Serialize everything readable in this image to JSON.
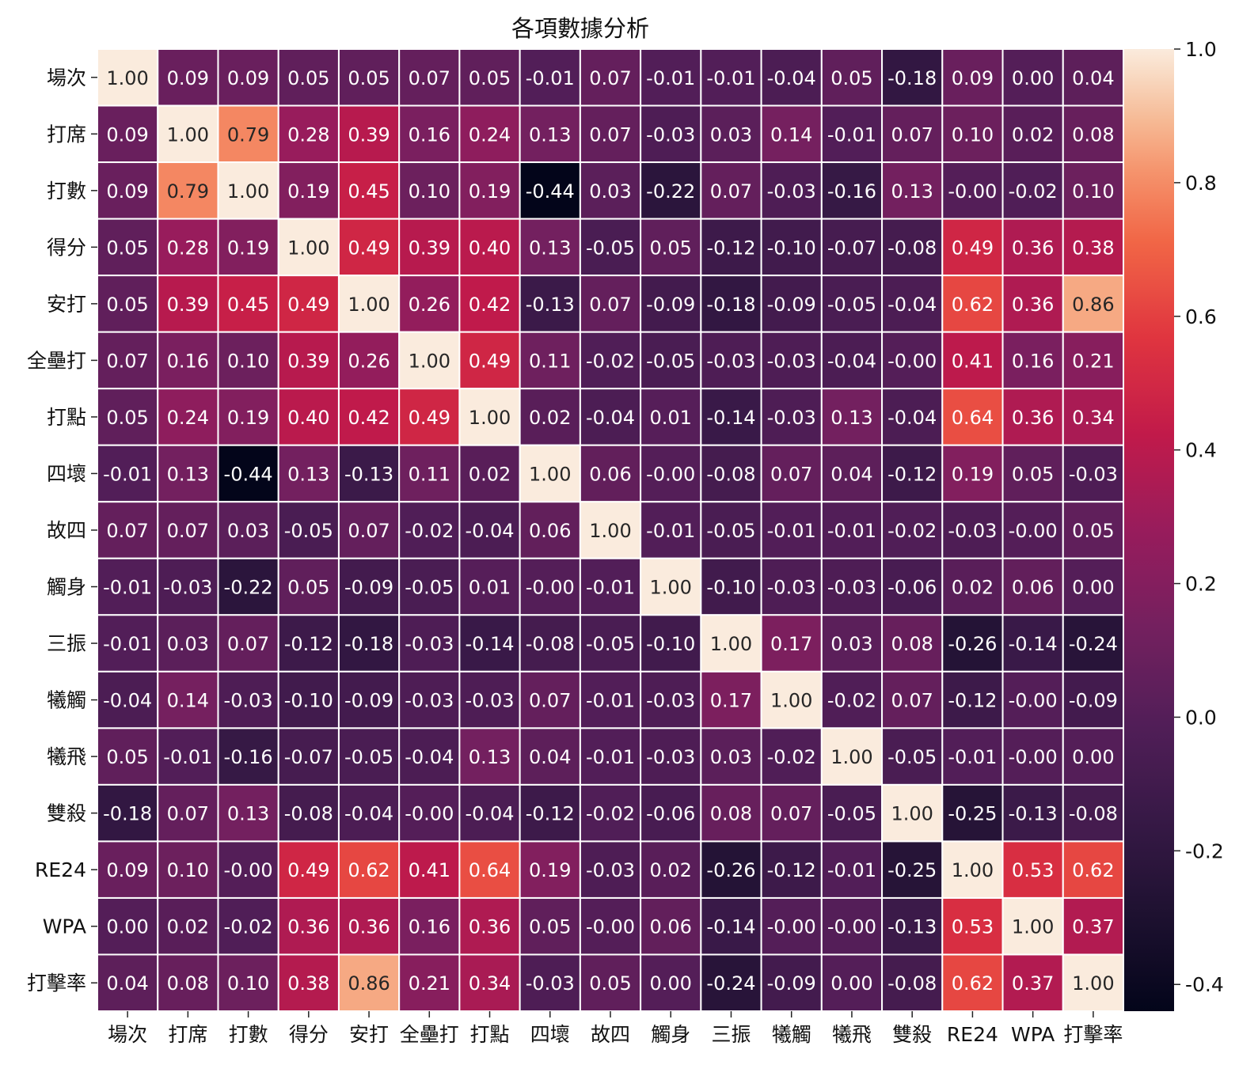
{
  "chart_data": {
    "type": "heatmap",
    "title": "各項數據分析",
    "xlabel": "",
    "ylabel": "",
    "rows": [
      "場次",
      "打席",
      "打數",
      "得分",
      "安打",
      "全壘打",
      "打點",
      "四壞",
      "故四",
      "觸身",
      "三振",
      "犧觸",
      "犧飛",
      "雙殺",
      "RE24",
      "WPA",
      "打擊率"
    ],
    "columns": [
      "場次",
      "打席",
      "打數",
      "得分",
      "安打",
      "全壘打",
      "打點",
      "四壞",
      "故四",
      "觸身",
      "三振",
      "犧觸",
      "犧飛",
      "雙殺",
      "RE24",
      "WPA",
      "打擊率"
    ],
    "values": [
      [
        1.0,
        0.09,
        0.09,
        0.05,
        0.05,
        0.07,
        0.05,
        -0.01,
        0.07,
        -0.01,
        -0.01,
        -0.04,
        0.05,
        -0.18,
        0.09,
        0.0,
        0.04
      ],
      [
        0.09,
        1.0,
        0.79,
        0.28,
        0.39,
        0.16,
        0.24,
        0.13,
        0.07,
        -0.03,
        0.03,
        0.14,
        -0.01,
        0.07,
        0.1,
        0.02,
        0.08
      ],
      [
        0.09,
        0.79,
        1.0,
        0.19,
        0.45,
        0.1,
        0.19,
        -0.44,
        0.03,
        -0.22,
        0.07,
        -0.03,
        -0.16,
        0.13,
        -0.0,
        -0.02,
        0.1
      ],
      [
        0.05,
        0.28,
        0.19,
        1.0,
        0.49,
        0.39,
        0.4,
        0.13,
        -0.05,
        0.05,
        -0.12,
        -0.1,
        -0.07,
        -0.08,
        0.49,
        0.36,
        0.38
      ],
      [
        0.05,
        0.39,
        0.45,
        0.49,
        1.0,
        0.26,
        0.42,
        -0.13,
        0.07,
        -0.09,
        -0.18,
        -0.09,
        -0.05,
        -0.04,
        0.62,
        0.36,
        0.86
      ],
      [
        0.07,
        0.16,
        0.1,
        0.39,
        0.26,
        1.0,
        0.49,
        0.11,
        -0.02,
        -0.05,
        -0.03,
        -0.03,
        -0.04,
        -0.0,
        0.41,
        0.16,
        0.21
      ],
      [
        0.05,
        0.24,
        0.19,
        0.4,
        0.42,
        0.49,
        1.0,
        0.02,
        -0.04,
        0.01,
        -0.14,
        -0.03,
        0.13,
        -0.04,
        0.64,
        0.36,
        0.34
      ],
      [
        -0.01,
        0.13,
        -0.44,
        0.13,
        -0.13,
        0.11,
        0.02,
        1.0,
        0.06,
        -0.0,
        -0.08,
        0.07,
        0.04,
        -0.12,
        0.19,
        0.05,
        -0.03
      ],
      [
        0.07,
        0.07,
        0.03,
        -0.05,
        0.07,
        -0.02,
        -0.04,
        0.06,
        1.0,
        -0.01,
        -0.05,
        -0.01,
        -0.01,
        -0.02,
        -0.03,
        -0.0,
        0.05
      ],
      [
        -0.01,
        -0.03,
        -0.22,
        0.05,
        -0.09,
        -0.05,
        0.01,
        -0.0,
        -0.01,
        1.0,
        -0.1,
        -0.03,
        -0.03,
        -0.06,
        0.02,
        0.06,
        0.0
      ],
      [
        -0.01,
        0.03,
        0.07,
        -0.12,
        -0.18,
        -0.03,
        -0.14,
        -0.08,
        -0.05,
        -0.1,
        1.0,
        0.17,
        0.03,
        0.08,
        -0.26,
        -0.14,
        -0.24
      ],
      [
        -0.04,
        0.14,
        -0.03,
        -0.1,
        -0.09,
        -0.03,
        -0.03,
        0.07,
        -0.01,
        -0.03,
        0.17,
        1.0,
        -0.02,
        0.07,
        -0.12,
        -0.0,
        -0.09
      ],
      [
        0.05,
        -0.01,
        -0.16,
        -0.07,
        -0.05,
        -0.04,
        0.13,
        0.04,
        -0.01,
        -0.03,
        0.03,
        -0.02,
        1.0,
        -0.05,
        -0.01,
        -0.0,
        0.0
      ],
      [
        -0.18,
        0.07,
        0.13,
        -0.08,
        -0.04,
        -0.0,
        -0.04,
        -0.12,
        -0.02,
        -0.06,
        0.08,
        0.07,
        -0.05,
        1.0,
        -0.25,
        -0.13,
        -0.08
      ],
      [
        0.09,
        0.1,
        -0.0,
        0.49,
        0.62,
        0.41,
        0.64,
        0.19,
        -0.03,
        0.02,
        -0.26,
        -0.12,
        -0.01,
        -0.25,
        1.0,
        0.53,
        0.62
      ],
      [
        0.0,
        0.02,
        -0.02,
        0.36,
        0.36,
        0.16,
        0.36,
        0.05,
        -0.0,
        0.06,
        -0.14,
        -0.0,
        -0.0,
        -0.13,
        0.53,
        1.0,
        0.37
      ],
      [
        0.04,
        0.08,
        0.1,
        0.38,
        0.86,
        0.21,
        0.34,
        -0.03,
        0.05,
        0.0,
        -0.24,
        -0.09,
        0.0,
        -0.08,
        0.62,
        0.37,
        1.0
      ]
    ],
    "cell_labels": [
      [
        "1.00",
        "0.09",
        "0.09",
        "0.05",
        "0.05",
        "0.07",
        "0.05",
        "-0.01",
        "0.07",
        "-0.01",
        "-0.01",
        "-0.04",
        "0.05",
        "-0.18",
        "0.09",
        "0.00",
        "0.04"
      ],
      [
        "0.09",
        "1.00",
        "0.79",
        "0.28",
        "0.39",
        "0.16",
        "0.24",
        "0.13",
        "0.07",
        "-0.03",
        "0.03",
        "0.14",
        "-0.01",
        "0.07",
        "0.10",
        "0.02",
        "0.08"
      ],
      [
        "0.09",
        "0.79",
        "1.00",
        "0.19",
        "0.45",
        "0.10",
        "0.19",
        "-0.44",
        "0.03",
        "-0.22",
        "0.07",
        "-0.03",
        "-0.16",
        "0.13",
        "-0.00",
        "-0.02",
        "0.10"
      ],
      [
        "0.05",
        "0.28",
        "0.19",
        "1.00",
        "0.49",
        "0.39",
        "0.40",
        "0.13",
        "-0.05",
        "0.05",
        "-0.12",
        "-0.10",
        "-0.07",
        "-0.08",
        "0.49",
        "0.36",
        "0.38"
      ],
      [
        "0.05",
        "0.39",
        "0.45",
        "0.49",
        "1.00",
        "0.26",
        "0.42",
        "-0.13",
        "0.07",
        "-0.09",
        "-0.18",
        "-0.09",
        "-0.05",
        "-0.04",
        "0.62",
        "0.36",
        "0.86"
      ],
      [
        "0.07",
        "0.16",
        "0.10",
        "0.39",
        "0.26",
        "1.00",
        "0.49",
        "0.11",
        "-0.02",
        "-0.05",
        "-0.03",
        "-0.03",
        "-0.04",
        "-0.00",
        "0.41",
        "0.16",
        "0.21"
      ],
      [
        "0.05",
        "0.24",
        "0.19",
        "0.40",
        "0.42",
        "0.49",
        "1.00",
        "0.02",
        "-0.04",
        "0.01",
        "-0.14",
        "-0.03",
        "0.13",
        "-0.04",
        "0.64",
        "0.36",
        "0.34"
      ],
      [
        "-0.01",
        "0.13",
        "-0.44",
        "0.13",
        "-0.13",
        "0.11",
        "0.02",
        "1.00",
        "0.06",
        "-0.00",
        "-0.08",
        "0.07",
        "0.04",
        "-0.12",
        "0.19",
        "0.05",
        "-0.03"
      ],
      [
        "0.07",
        "0.07",
        "0.03",
        "-0.05",
        "0.07",
        "-0.02",
        "-0.04",
        "0.06",
        "1.00",
        "-0.01",
        "-0.05",
        "-0.01",
        "-0.01",
        "-0.02",
        "-0.03",
        "-0.00",
        "0.05"
      ],
      [
        "-0.01",
        "-0.03",
        "-0.22",
        "0.05",
        "-0.09",
        "-0.05",
        "0.01",
        "-0.00",
        "-0.01",
        "1.00",
        "-0.10",
        "-0.03",
        "-0.03",
        "-0.06",
        "0.02",
        "0.06",
        "0.00"
      ],
      [
        "-0.01",
        "0.03",
        "0.07",
        "-0.12",
        "-0.18",
        "-0.03",
        "-0.14",
        "-0.08",
        "-0.05",
        "-0.10",
        "1.00",
        "0.17",
        "0.03",
        "0.08",
        "-0.26",
        "-0.14",
        "-0.24"
      ],
      [
        "-0.04",
        "0.14",
        "-0.03",
        "-0.10",
        "-0.09",
        "-0.03",
        "-0.03",
        "0.07",
        "-0.01",
        "-0.03",
        "0.17",
        "1.00",
        "-0.02",
        "0.07",
        "-0.12",
        "-0.00",
        "-0.09"
      ],
      [
        "0.05",
        "-0.01",
        "-0.16",
        "-0.07",
        "-0.05",
        "-0.04",
        "0.13",
        "0.04",
        "-0.01",
        "-0.03",
        "0.03",
        "-0.02",
        "1.00",
        "-0.05",
        "-0.01",
        "-0.00",
        "0.00"
      ],
      [
        "-0.18",
        "0.07",
        "0.13",
        "-0.08",
        "-0.04",
        "-0.00",
        "-0.04",
        "-0.12",
        "-0.02",
        "-0.06",
        "0.08",
        "0.07",
        "-0.05",
        "1.00",
        "-0.25",
        "-0.13",
        "-0.08"
      ],
      [
        "0.09",
        "0.10",
        "-0.00",
        "0.49",
        "0.62",
        "0.41",
        "0.64",
        "0.19",
        "-0.03",
        "0.02",
        "-0.26",
        "-0.12",
        "-0.01",
        "-0.25",
        "1.00",
        "0.53",
        "0.62"
      ],
      [
        "0.00",
        "0.02",
        "-0.02",
        "0.36",
        "0.36",
        "0.16",
        "0.36",
        "0.05",
        "-0.00",
        "0.06",
        "-0.14",
        "-0.00",
        "-0.00",
        "-0.13",
        "0.53",
        "1.00",
        "0.37"
      ],
      [
        "0.04",
        "0.08",
        "0.10",
        "0.38",
        "0.86",
        "0.21",
        "0.34",
        "-0.03",
        "0.05",
        "0.00",
        "-0.24",
        "-0.09",
        "0.00",
        "-0.08",
        "0.62",
        "0.37",
        "1.00"
      ]
    ],
    "colorbar": {
      "range": [
        -0.44,
        1.0
      ],
      "ticks": [
        1.0,
        0.8,
        0.6,
        0.4,
        0.2,
        0.0,
        -0.2,
        -0.4
      ],
      "tick_labels": [
        "1.0",
        "0.8",
        "0.6",
        "0.4",
        "0.2",
        "0.0",
        "-0.2",
        "-0.4"
      ],
      "colormap": "rocket"
    },
    "grid": true,
    "legend": "colorbar-right"
  }
}
